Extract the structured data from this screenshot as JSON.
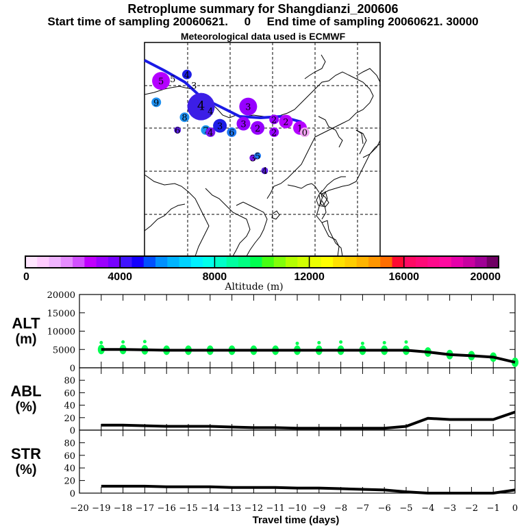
{
  "header": {
    "title": "Retroplume summary for Shangdianzi_200606",
    "sampling": "Start time of sampling 20060621.     0     End time of sampling 20060621. 30000",
    "met": "Meteorological data used is ECMWF"
  },
  "map": {
    "trajectory_color": "#1a1ae6",
    "clusters": [
      {
        "label": "5",
        "lon": 0.07,
        "lat": 0.18,
        "size": "large",
        "color": "#b400ff"
      },
      {
        "label": "5",
        "lon": 0.12,
        "lat": 0.17,
        "size": "text",
        "color": "#000000"
      },
      {
        "label": "4",
        "lon": 0.18,
        "lat": 0.15,
        "size": "small",
        "color": "#1e1ee6"
      },
      {
        "label": "3",
        "lon": 0.21,
        "lat": 0.2,
        "size": "text",
        "color": "#000000"
      },
      {
        "label": "9",
        "lon": 0.05,
        "lat": 0.28,
        "size": "small",
        "color": "#1e90f0"
      },
      {
        "label": "4",
        "lon": 0.24,
        "lat": 0.3,
        "size": "xlarge",
        "color": "#3c1ee6"
      },
      {
        "label": "4",
        "lon": 0.28,
        "lat": 0.32,
        "size": "text",
        "color": "#000000"
      },
      {
        "label": "3",
        "lon": 0.44,
        "lat": 0.3,
        "size": "large",
        "color": "#9600ff"
      },
      {
        "label": "8",
        "lon": 0.17,
        "lat": 0.35,
        "size": "small",
        "color": "#1e90f0"
      },
      {
        "label": "6",
        "lon": 0.14,
        "lat": 0.41,
        "size": "tiny",
        "color": "#5a1ee6"
      },
      {
        "label": "7",
        "lon": 0.26,
        "lat": 0.41,
        "size": "small",
        "color": "#1e96f0"
      },
      {
        "label": "4",
        "lon": 0.28,
        "lat": 0.42,
        "size": "small",
        "color": "#7814f0"
      },
      {
        "label": "3",
        "lon": 0.32,
        "lat": 0.39,
        "size": "medium",
        "color": "#1e1ee6"
      },
      {
        "label": "6",
        "lon": 0.37,
        "lat": 0.42,
        "size": "small",
        "color": "#1e78f0"
      },
      {
        "label": "3",
        "lon": 0.42,
        "lat": 0.38,
        "size": "medium",
        "color": "#9600ff"
      },
      {
        "label": "2",
        "lon": 0.48,
        "lat": 0.4,
        "size": "medium",
        "color": "#9600ff"
      },
      {
        "label": "2",
        "lon": 0.55,
        "lat": 0.36,
        "size": "small",
        "color": "#9600ff"
      },
      {
        "label": "2",
        "lon": 0.55,
        "lat": 0.42,
        "size": "small",
        "color": "#9600ff"
      },
      {
        "label": "2",
        "lon": 0.6,
        "lat": 0.37,
        "size": "medium",
        "color": "#b400ff"
      },
      {
        "label": "1",
        "lon": 0.66,
        "lat": 0.4,
        "size": "medium",
        "color": "#b400ff"
      },
      {
        "label": "0",
        "lon": 0.68,
        "lat": 0.42,
        "size": "small",
        "color": "#f0a0f0"
      },
      {
        "label": "3",
        "lon": 0.46,
        "lat": 0.54,
        "size": "tiny",
        "color": "#7814f0"
      },
      {
        "label": "5",
        "lon": 0.48,
        "lat": 0.53,
        "size": "tiny",
        "color": "#1e78f0"
      },
      {
        "label": "4",
        "lon": 0.51,
        "lat": 0.6,
        "size": "tiny",
        "color": "#5a1ee6"
      }
    ]
  },
  "colorbar": {
    "label": "Altitude (m)",
    "ticks": [
      "0",
      "4000",
      "8000",
      "12000",
      "16000",
      "20000"
    ],
    "colors": [
      "#ffe6ff",
      "#ffccff",
      "#f0b4ff",
      "#e68cff",
      "#d250ff",
      "#c000ff",
      "#9b00ff",
      "#7700ff",
      "#4014ff",
      "#1400ff",
      "#0050ff",
      "#0090ff",
      "#00b4ff",
      "#00d2ff",
      "#00f0ff",
      "#00ffeb",
      "#00ffc8",
      "#00ffa0",
      "#00ff82",
      "#00ff50",
      "#46ff14",
      "#82ff0a",
      "#b4ff00",
      "#d2ff00",
      "#eaff00",
      "#ffff00",
      "#ffe100",
      "#ffcd00",
      "#ffb400",
      "#ff9600",
      "#ff6e00",
      "#ff0a32",
      "#ff0a64",
      "#ff0a78",
      "#ff0a8c",
      "#ff0aa0",
      "#e600aa",
      "#c800a0",
      "#a00096",
      "#700064"
    ]
  },
  "chart_data": [
    {
      "type": "line",
      "name": "ALT",
      "ylabel": "ALT\n(m)",
      "ylabel_line1": "ALT",
      "ylabel_line2": "(m)",
      "ylim": [
        0,
        20000
      ],
      "yticks": [
        "0",
        "5000",
        "10000",
        "15000",
        "20000"
      ],
      "x": [
        -19,
        -18,
        -17,
        -16,
        -15,
        -14,
        -13,
        -12,
        -11,
        -10,
        -9,
        -8,
        -7,
        -6,
        -5,
        -4,
        -3,
        -2,
        -1,
        0
      ],
      "values": [
        5000,
        5000,
        4900,
        4800,
        4800,
        4800,
        4800,
        4800,
        4800,
        4800,
        4800,
        4800,
        4800,
        4800,
        4800,
        4300,
        3600,
        3300,
        2900,
        1500
      ],
      "scatter_color": "#00ff50"
    },
    {
      "type": "line",
      "name": "ABL",
      "ylabel_line1": "ABL",
      "ylabel_line2": "(%)",
      "ylim": [
        0,
        100
      ],
      "yticks": [
        "0",
        "20",
        "40",
        "60",
        "80"
      ],
      "x": [
        -19,
        -18,
        -17,
        -16,
        -15,
        -14,
        -13,
        -12,
        -11,
        -10,
        -9,
        -8,
        -7,
        -6,
        -5,
        -4,
        -3,
        -2,
        -1,
        0
      ],
      "values": [
        8,
        8,
        7,
        6,
        6,
        6,
        5,
        4,
        4,
        3,
        3,
        3,
        3,
        3,
        6,
        19,
        17,
        17,
        17,
        29
      ]
    },
    {
      "type": "line",
      "name": "STR",
      "ylabel_line1": "STR",
      "ylabel_line2": "(%)",
      "ylim": [
        0,
        100
      ],
      "yticks": [
        "0",
        "20",
        "40",
        "60",
        "80"
      ],
      "x": [
        -19,
        -18,
        -17,
        -16,
        -15,
        -14,
        -13,
        -12,
        -11,
        -10,
        -9,
        -8,
        -7,
        -6,
        -5,
        -4,
        -3,
        -2,
        -1,
        0
      ],
      "values": [
        11,
        11,
        11,
        10,
        10,
        10,
        9,
        9,
        9,
        8,
        8,
        7,
        6,
        5,
        2,
        0,
        0,
        0,
        0,
        5
      ]
    }
  ],
  "xaxis": {
    "label": "Travel time (days)",
    "ticks": [
      "−20",
      "−19",
      "−18",
      "−17",
      "−16",
      "−15",
      "−14",
      "−13",
      "−12",
      "−11",
      "−10",
      "−9",
      "−8",
      "−7",
      "−6",
      "−5",
      "−4",
      "−3",
      "−2",
      "−1",
      "0"
    ],
    "range": [
      -20,
      0
    ]
  }
}
